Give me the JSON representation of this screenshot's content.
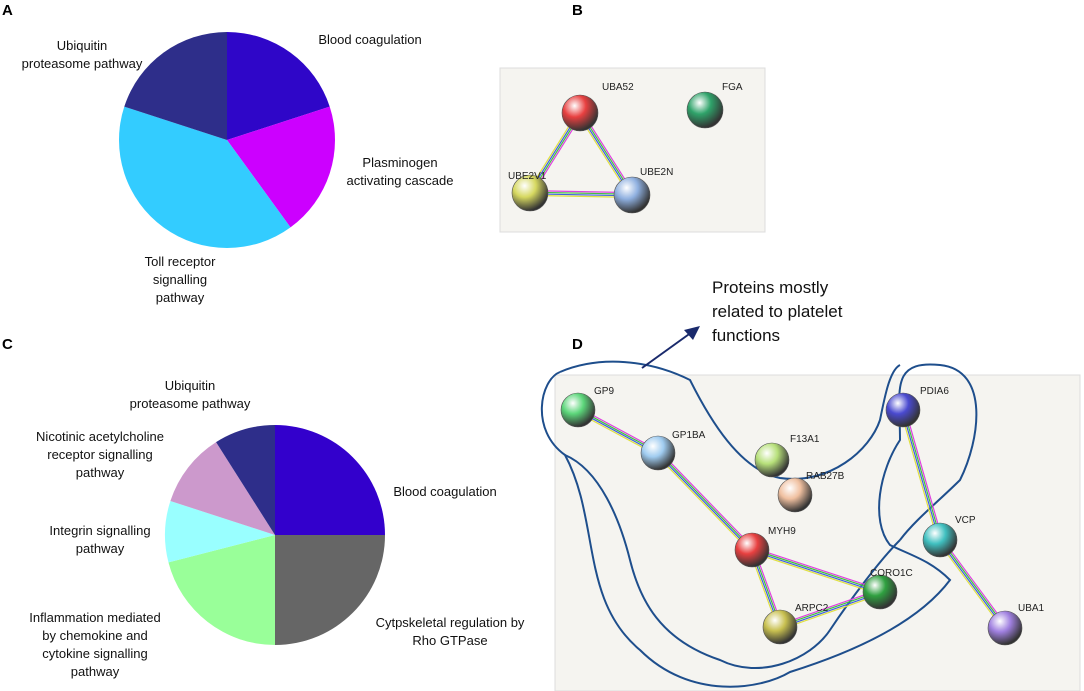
{
  "chart_data": [
    {
      "type": "pie",
      "panel": "A",
      "categories": [
        "Blood coagulation",
        "Plasminogen\nactivating cascade",
        "Toll receptor\nsignalling\npathway",
        "Ubiquitin\nproteasome pathway"
      ],
      "values": [
        20,
        20,
        40,
        20
      ],
      "colors": [
        "#2f06c8",
        "#cc00ff",
        "#33ccff",
        "#2e2e8a"
      ]
    },
    {
      "type": "pie",
      "panel": "C",
      "categories": [
        "Blood coagulation",
        "Cytpskeletal regulation by\nRho GTPase",
        "Inflammation mediated\nby chemokine and\ncytokine signalling\npathway",
        "Integrin signalling\npathway",
        "Nicotinic acetylcholine\nreceptor signalling\npathway",
        "Ubiquitin\nproteasome pathway"
      ],
      "values": [
        25,
        25,
        21,
        9,
        11,
        9
      ],
      "colors": [
        "#3300cc",
        "#666666",
        "#99ff99",
        "#99ffff",
        "#cc99cc",
        "#2e2e8a"
      ]
    }
  ],
  "networks": [
    {
      "panel": "B",
      "nodes": [
        {
          "label": "UBA52",
          "color": "#e84040"
        },
        {
          "label": "FGA",
          "color": "#2fa36a"
        },
        {
          "label": "UBE2V1",
          "color": "#d6d860"
        },
        {
          "label": "UBE2N",
          "color": "#8fb0e0"
        }
      ]
    },
    {
      "panel": "D",
      "annotation": "Proteins mostly\nrelated to platelet\nfunctions",
      "nodes": [
        {
          "label": "GP9",
          "color": "#5cd67a"
        },
        {
          "label": "F13A1",
          "color": "#b7e07a"
        },
        {
          "label": "PDIA6",
          "color": "#4a4ad0"
        },
        {
          "label": "GP1BA",
          "color": "#a0ccf0"
        },
        {
          "label": "RAB27B",
          "color": "#f0c0a0"
        },
        {
          "label": "MYH9",
          "color": "#e84040"
        },
        {
          "label": "VCP",
          "color": "#40c0c0"
        },
        {
          "label": "CORO1C",
          "color": "#2fa040"
        },
        {
          "label": "ARPC2",
          "color": "#c8c050"
        },
        {
          "label": "UBA1",
          "color": "#a080e0"
        }
      ]
    }
  ]
}
